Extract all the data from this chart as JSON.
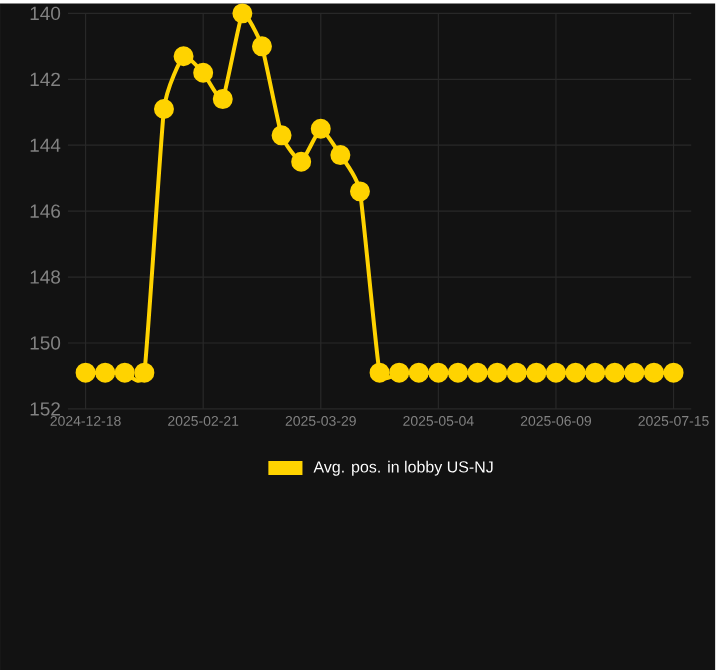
{
  "chart_data": {
    "type": "line",
    "categories": [
      "2024-12-18",
      null,
      null,
      null,
      null,
      null,
      "2025-02-21",
      null,
      null,
      null,
      null,
      null,
      "2025-03-29",
      null,
      null,
      null,
      null,
      null,
      "2025-05-04",
      null,
      null,
      null,
      null,
      null,
      "2025-06-09",
      null,
      null,
      null,
      null,
      null,
      "2025-07-15"
    ],
    "series": [
      {
        "name": "Avg. pos. in lobby US-NJ",
        "color": "#ffd300",
        "values": [
          150.9,
          150.9,
          150.9,
          150.9,
          142.9,
          141.3,
          141.8,
          142.6,
          140.0,
          141.0,
          143.7,
          144.5,
          143.5,
          144.3,
          145.4,
          150.9,
          150.9,
          150.9,
          150.9,
          150.9,
          150.9,
          150.9,
          150.9,
          150.9,
          150.9,
          150.9,
          150.9,
          150.9,
          150.9,
          150.9,
          150.9
        ]
      }
    ],
    "ylim": [
      152,
      140
    ],
    "yticks": [
      140,
      142,
      144,
      146,
      148,
      150,
      152
    ],
    "grid": true,
    "legend": "bottom",
    "marker": "circle",
    "line_style": "solid"
  }
}
